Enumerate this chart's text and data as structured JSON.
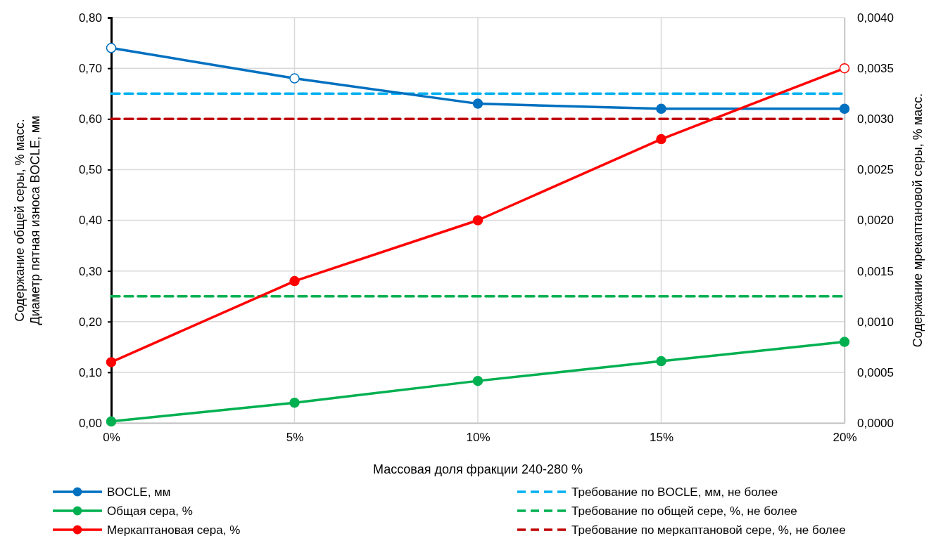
{
  "chart_data": {
    "type": "line",
    "xlabel": "Массовая доля фракции 240-280 %",
    "ylabel": "Содержание общей серы, % масс.\nДиаметр пятная износа BOCLE, мм",
    "y2label": "Содержание мрекаптановой серы, % масс.",
    "x": [
      0,
      5,
      10,
      15,
      20
    ],
    "xlim": [
      0,
      20
    ],
    "xticks": [
      {
        "value": 0,
        "label": "0%"
      },
      {
        "value": 5,
        "label": "5%"
      },
      {
        "value": 10,
        "label": "10%"
      },
      {
        "value": 15,
        "label": "15%"
      },
      {
        "value": 20,
        "label": "20%"
      }
    ],
    "ylim": [
      0,
      0.8
    ],
    "yticks": [
      {
        "value": 0,
        "label": "0,00"
      },
      {
        "value": 0.1,
        "label": "0,10"
      },
      {
        "value": 0.2,
        "label": "0,20"
      },
      {
        "value": 0.3,
        "label": "0,30"
      },
      {
        "value": 0.4,
        "label": "0,40"
      },
      {
        "value": 0.5,
        "label": "0,50"
      },
      {
        "value": 0.6,
        "label": "0,60"
      },
      {
        "value": 0.7,
        "label": "0,70"
      },
      {
        "value": 0.8,
        "label": "0,80"
      }
    ],
    "y2lim": [
      0,
      0.004
    ],
    "y2ticks": [
      {
        "value": 0,
        "label": "0,0000"
      },
      {
        "value": 0.0005,
        "label": "0,0005"
      },
      {
        "value": 0.001,
        "label": "0,0010"
      },
      {
        "value": 0.0015,
        "label": "0,0015"
      },
      {
        "value": 0.002,
        "label": "0,0020"
      },
      {
        "value": 0.0025,
        "label": "0,0025"
      },
      {
        "value": 0.003,
        "label": "0,0030"
      },
      {
        "value": 0.0035,
        "label": "0,0035"
      },
      {
        "value": 0.004,
        "label": "0,0040"
      }
    ],
    "grid": true,
    "legend": "bottom",
    "marker": "circle",
    "line_style": "solid",
    "series": [
      {
        "name": "BOCLE, мм",
        "color": "#0070c0",
        "values": [
          0.74,
          0.68,
          0.63,
          0.62,
          0.62
        ],
        "colors": [
          "#ffffff",
          "#ffffff",
          "#0070c0",
          "#0070c0",
          "#0070c0"
        ]
      },
      {
        "name": "Требование по BOCLE, мм, не более",
        "color": "#00b0f0",
        "values": [
          0.65,
          0.65,
          0.65,
          0.65,
          0.65
        ],
        "marker": "none",
        "line_style": "dashed"
      },
      {
        "name": "Общая сера, %",
        "color": "#00b050",
        "values": [
          0.003,
          0.04,
          0.083,
          0.122,
          0.16
        ]
      },
      {
        "name": "Требование по общей сере, %, не более",
        "color": "#00b050",
        "values": [
          0.25,
          0.25,
          0.25,
          0.25,
          0.25
        ],
        "marker": "none",
        "line_style": "dashed"
      },
      {
        "name": "Меркаптановая сера, %",
        "color": "#ff0000",
        "axis": "y2",
        "values": [
          0.0006,
          0.0014,
          0.002,
          0.0028,
          0.0035
        ],
        "colors": [
          "#ff0000",
          "#ff0000",
          "#ff0000",
          "#ff0000",
          "#ffffff"
        ]
      },
      {
        "name": "Требование по меркаптановой сере, %, не более",
        "color": "#c00000",
        "axis": "y2",
        "values": [
          0.003,
          0.003,
          0.003,
          0.003,
          0.003
        ],
        "marker": "none",
        "line_style": "dashed"
      }
    ]
  }
}
